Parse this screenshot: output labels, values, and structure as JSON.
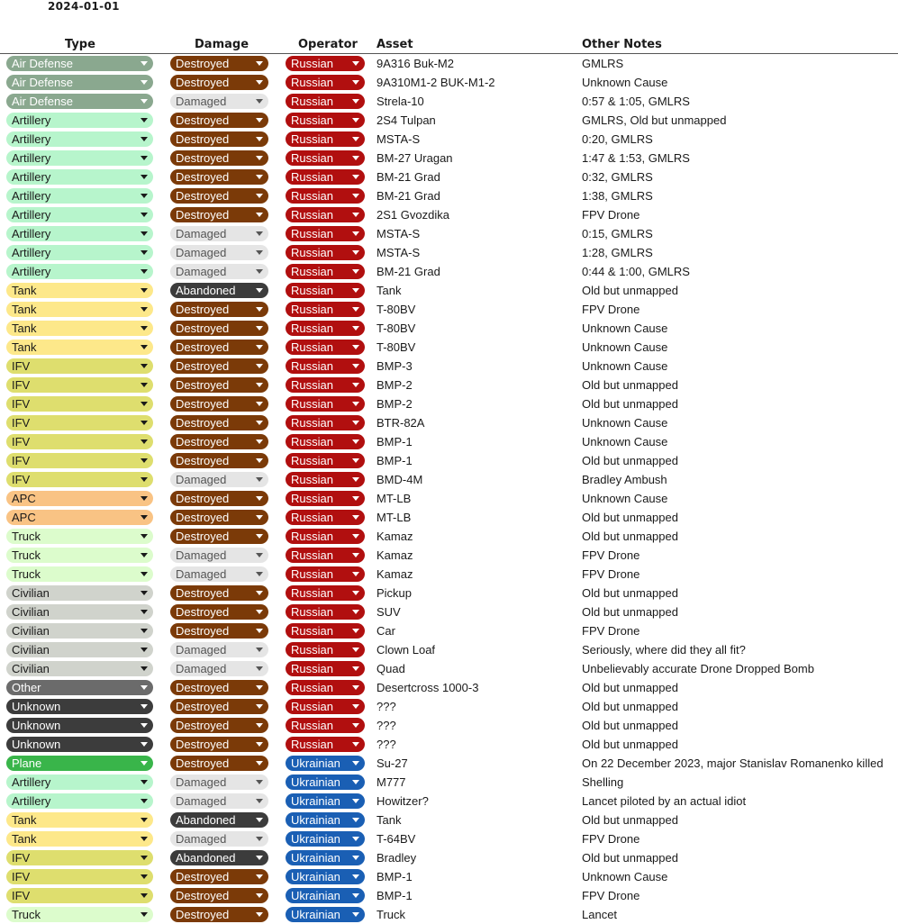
{
  "date": "2024-01-01",
  "headers": {
    "type": "Type",
    "damage": "Damage",
    "operator": "Operator",
    "asset": "Asset",
    "notes": "Other Notes"
  },
  "styles": {
    "type": {
      "Air Defense": {
        "bg": "#8aa88f",
        "fg": "#ffffff"
      },
      "Artillery": {
        "bg": "#b7f5cc",
        "fg": "#1a1a1a"
      },
      "Tank": {
        "bg": "#fde88a",
        "fg": "#1a1a1a"
      },
      "IFV": {
        "bg": "#dede6e",
        "fg": "#1a1a1a"
      },
      "APC": {
        "bg": "#f9c384",
        "fg": "#1a1a1a"
      },
      "Truck": {
        "bg": "#dcfccc",
        "fg": "#1a1a1a"
      },
      "Civilian": {
        "bg": "#d0d3cc",
        "fg": "#1a1a1a"
      },
      "Other": {
        "bg": "#6b6b6b",
        "fg": "#ffffff"
      },
      "Unknown": {
        "bg": "#3c3c3c",
        "fg": "#ffffff"
      },
      "Plane": {
        "bg": "#39b54a",
        "fg": "#ffffff"
      }
    },
    "damage": {
      "Destroyed": {
        "bg": "#7b3a08",
        "fg": "#ffffff"
      },
      "Damaged": {
        "bg": "#e5e5e5",
        "fg": "#555555"
      },
      "Abandoned": {
        "bg": "#3c3c3c",
        "fg": "#ffffff"
      }
    },
    "operator": {
      "Russian": {
        "bg": "#b10f0f",
        "fg": "#ffffff"
      },
      "Ukrainian": {
        "bg": "#1a5fb4",
        "fg": "#ffffff"
      }
    }
  },
  "rows": [
    {
      "type": "Air Defense",
      "damage": "Destroyed",
      "operator": "Russian",
      "asset": "9A316 Buk-M2",
      "notes": "GMLRS"
    },
    {
      "type": "Air Defense",
      "damage": "Destroyed",
      "operator": "Russian",
      "asset": "9A310M1-2 BUK-M1-2",
      "notes": "Unknown Cause"
    },
    {
      "type": "Air Defense",
      "damage": "Damaged",
      "operator": "Russian",
      "asset": "Strela-10",
      "notes": "0:57 & 1:05, GMLRS"
    },
    {
      "type": "Artillery",
      "damage": "Destroyed",
      "operator": "Russian",
      "asset": "2S4 Tulpan",
      "notes": "GMLRS, Old but unmapped"
    },
    {
      "type": "Artillery",
      "damage": "Destroyed",
      "operator": "Russian",
      "asset": "MSTA-S",
      "notes": "0:20, GMLRS"
    },
    {
      "type": "Artillery",
      "damage": "Destroyed",
      "operator": "Russian",
      "asset": "BM-27 Uragan",
      "notes": "1:47 & 1:53, GMLRS"
    },
    {
      "type": "Artillery",
      "damage": "Destroyed",
      "operator": "Russian",
      "asset": "BM-21 Grad",
      "notes": "0:32, GMLRS"
    },
    {
      "type": "Artillery",
      "damage": "Destroyed",
      "operator": "Russian",
      "asset": "BM-21 Grad",
      "notes": "1:38, GMLRS"
    },
    {
      "type": "Artillery",
      "damage": "Destroyed",
      "operator": "Russian",
      "asset": "2S1 Gvozdika",
      "notes": "FPV Drone"
    },
    {
      "type": "Artillery",
      "damage": "Damaged",
      "operator": "Russian",
      "asset": "MSTA-S",
      "notes": "0:15, GMLRS"
    },
    {
      "type": "Artillery",
      "damage": "Damaged",
      "operator": "Russian",
      "asset": "MSTA-S",
      "notes": "1:28, GMLRS"
    },
    {
      "type": "Artillery",
      "damage": "Damaged",
      "operator": "Russian",
      "asset": "BM-21 Grad",
      "notes": "0:44 & 1:00, GMLRS"
    },
    {
      "type": "Tank",
      "damage": "Abandoned",
      "operator": "Russian",
      "asset": "Tank",
      "notes": "Old but unmapped"
    },
    {
      "type": "Tank",
      "damage": "Destroyed",
      "operator": "Russian",
      "asset": "T-80BV",
      "notes": "FPV Drone"
    },
    {
      "type": "Tank",
      "damage": "Destroyed",
      "operator": "Russian",
      "asset": "T-80BV",
      "notes": "Unknown Cause"
    },
    {
      "type": "Tank",
      "damage": "Destroyed",
      "operator": "Russian",
      "asset": "T-80BV",
      "notes": "Unknown Cause"
    },
    {
      "type": "IFV",
      "damage": "Destroyed",
      "operator": "Russian",
      "asset": "BMP-3",
      "notes": "Unknown Cause"
    },
    {
      "type": "IFV",
      "damage": "Destroyed",
      "operator": "Russian",
      "asset": "BMP-2",
      "notes": "Old but unmapped"
    },
    {
      "type": "IFV",
      "damage": "Destroyed",
      "operator": "Russian",
      "asset": "BMP-2",
      "notes": "Old but unmapped"
    },
    {
      "type": "IFV",
      "damage": "Destroyed",
      "operator": "Russian",
      "asset": "BTR-82A",
      "notes": "Unknown Cause"
    },
    {
      "type": "IFV",
      "damage": "Destroyed",
      "operator": "Russian",
      "asset": "BMP-1",
      "notes": "Unknown Cause"
    },
    {
      "type": "IFV",
      "damage": "Destroyed",
      "operator": "Russian",
      "asset": "BMP-1",
      "notes": "Old but unmapped"
    },
    {
      "type": "IFV",
      "damage": "Damaged",
      "operator": "Russian",
      "asset": "BMD-4M",
      "notes": "Bradley Ambush"
    },
    {
      "type": "APC",
      "damage": "Destroyed",
      "operator": "Russian",
      "asset": "MT-LB",
      "notes": "Unknown Cause"
    },
    {
      "type": "APC",
      "damage": "Destroyed",
      "operator": "Russian",
      "asset": "MT-LB",
      "notes": "Old but unmapped"
    },
    {
      "type": "Truck",
      "damage": "Destroyed",
      "operator": "Russian",
      "asset": "Kamaz",
      "notes": "Old but unmapped"
    },
    {
      "type": "Truck",
      "damage": "Damaged",
      "operator": "Russian",
      "asset": "Kamaz",
      "notes": "FPV Drone"
    },
    {
      "type": "Truck",
      "damage": "Damaged",
      "operator": "Russian",
      "asset": "Kamaz",
      "notes": "FPV Drone"
    },
    {
      "type": "Civilian",
      "damage": "Destroyed",
      "operator": "Russian",
      "asset": "Pickup",
      "notes": "Old but unmapped"
    },
    {
      "type": "Civilian",
      "damage": "Destroyed",
      "operator": "Russian",
      "asset": "SUV",
      "notes": "Old but unmapped"
    },
    {
      "type": "Civilian",
      "damage": "Destroyed",
      "operator": "Russian",
      "asset": "Car",
      "notes": "FPV Drone"
    },
    {
      "type": "Civilian",
      "damage": "Damaged",
      "operator": "Russian",
      "asset": "Clown Loaf",
      "notes": "Seriously, where did they all fit?"
    },
    {
      "type": "Civilian",
      "damage": "Damaged",
      "operator": "Russian",
      "asset": "Quad",
      "notes": "Unbelievably accurate Drone Dropped Bomb"
    },
    {
      "type": "Other",
      "damage": "Destroyed",
      "operator": "Russian",
      "asset": "Desertcross 1000-3",
      "notes": "Old but unmapped"
    },
    {
      "type": "Unknown",
      "damage": "Destroyed",
      "operator": "Russian",
      "asset": "???",
      "notes": "Old but unmapped"
    },
    {
      "type": "Unknown",
      "damage": "Destroyed",
      "operator": "Russian",
      "asset": "???",
      "notes": "Old but unmapped"
    },
    {
      "type": "Unknown",
      "damage": "Destroyed",
      "operator": "Russian",
      "asset": "???",
      "notes": "Old but unmapped"
    },
    {
      "type": "Plane",
      "damage": "Destroyed",
      "operator": "Ukrainian",
      "asset": "Su-27",
      "notes": "On 22 December 2023, major Stanislav Romanenko killed"
    },
    {
      "type": "Artillery",
      "damage": "Damaged",
      "operator": "Ukrainian",
      "asset": "M777",
      "notes": "Shelling"
    },
    {
      "type": "Artillery",
      "damage": "Damaged",
      "operator": "Ukrainian",
      "asset": "Howitzer?",
      "notes": "Lancet piloted by an actual idiot"
    },
    {
      "type": "Tank",
      "damage": "Abandoned",
      "operator": "Ukrainian",
      "asset": "Tank",
      "notes": "Old but unmapped"
    },
    {
      "type": "Tank",
      "damage": "Damaged",
      "operator": "Ukrainian",
      "asset": "T-64BV",
      "notes": "FPV Drone"
    },
    {
      "type": "IFV",
      "damage": "Abandoned",
      "operator": "Ukrainian",
      "asset": "Bradley",
      "notes": "Old but unmapped"
    },
    {
      "type": "IFV",
      "damage": "Destroyed",
      "operator": "Ukrainian",
      "asset": "BMP-1",
      "notes": "Unknown Cause"
    },
    {
      "type": "IFV",
      "damage": "Destroyed",
      "operator": "Ukrainian",
      "asset": "BMP-1",
      "notes": "FPV Drone"
    },
    {
      "type": "Truck",
      "damage": "Destroyed",
      "operator": "Ukrainian",
      "asset": "Truck",
      "notes": "Lancet"
    }
  ]
}
